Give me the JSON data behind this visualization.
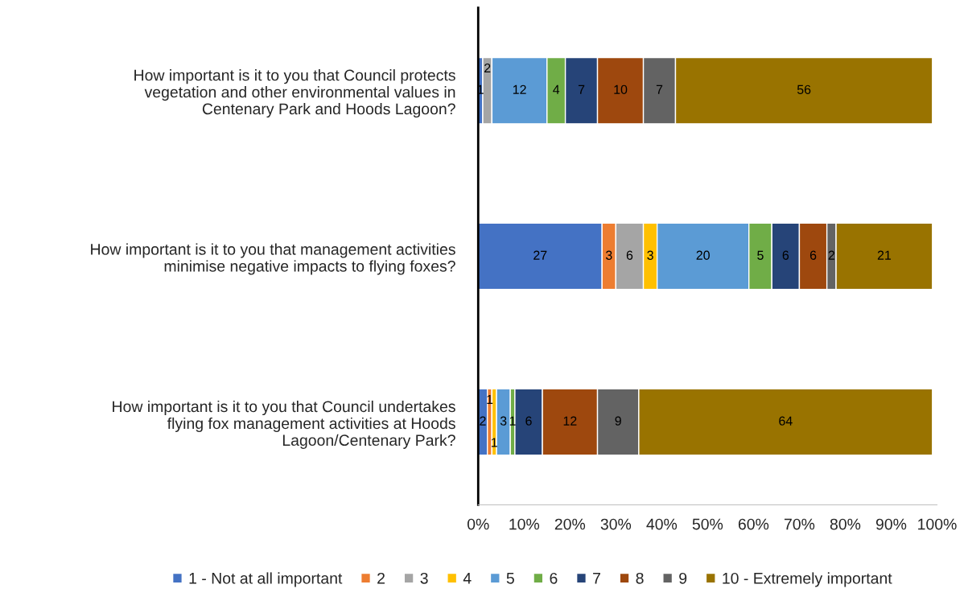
{
  "chart_data": {
    "type": "bar",
    "orientation": "horizontal",
    "stacked": true,
    "legend": "bottom",
    "grid": false,
    "categories": [
      "How important is it to you that Council protects\nvegetation and other environmental values in\nCentenary Park and Hoods Lagoon?",
      "How important is it to you that management activities\nminimise negative impacts to flying foxes?",
      "How important is it to you that Council undertakes\nflying fox management activities at Hoods\nLagoon/Centenary Park?"
    ],
    "xlim": [
      0,
      100
    ],
    "xticks": [
      {
        "value": 0,
        "label": "0%"
      },
      {
        "value": 10,
        "label": "10%"
      },
      {
        "value": 20,
        "label": "20%"
      },
      {
        "value": 30,
        "label": "30%"
      },
      {
        "value": 40,
        "label": "40%"
      },
      {
        "value": 50,
        "label": "50%"
      },
      {
        "value": 60,
        "label": "60%"
      },
      {
        "value": 70,
        "label": "70%"
      },
      {
        "value": 80,
        "label": "80%"
      },
      {
        "value": 90,
        "label": "90%"
      },
      {
        "value": 100,
        "label": "100%"
      }
    ],
    "series": [
      {
        "name": "1 - Not at all important",
        "color": "#4472c4",
        "values": [
          1,
          27,
          2
        ],
        "value_labels": [
          "1",
          "27",
          "2"
        ]
      },
      {
        "name": "2",
        "color": "#ed7d31",
        "values": [
          0,
          3,
          1
        ],
        "value_labels": [
          null,
          "3",
          "1"
        ]
      },
      {
        "name": "3",
        "color": "#a5a5a5",
        "values": [
          2,
          6,
          0
        ],
        "value_labels": [
          "2",
          "6",
          null
        ]
      },
      {
        "name": "4",
        "color": "#ffc000",
        "values": [
          0,
          3,
          1
        ],
        "value_labels": [
          null,
          "3",
          "1"
        ]
      },
      {
        "name": "5",
        "color": "#5b9bd5",
        "values": [
          12,
          20,
          3
        ],
        "value_labels": [
          "12",
          "20",
          "3"
        ]
      },
      {
        "name": "6",
        "color": "#70ad47",
        "values": [
          4,
          5,
          1
        ],
        "value_labels": [
          "4",
          "5",
          "1"
        ]
      },
      {
        "name": "7",
        "color": "#264478",
        "values": [
          7,
          6,
          6
        ],
        "value_labels": [
          "7",
          "6",
          "6"
        ]
      },
      {
        "name": "8",
        "color": "#9e480e",
        "values": [
          10,
          6,
          12
        ],
        "value_labels": [
          "10",
          "6",
          "12"
        ]
      },
      {
        "name": "9",
        "color": "#636363",
        "values": [
          7,
          2,
          9
        ],
        "value_labels": [
          "7",
          "2",
          "9"
        ]
      },
      {
        "name": "10 - Extremely important",
        "color": "#997300",
        "values": [
          56,
          21,
          64
        ],
        "value_labels": [
          "56",
          "21",
          "64"
        ]
      }
    ]
  }
}
